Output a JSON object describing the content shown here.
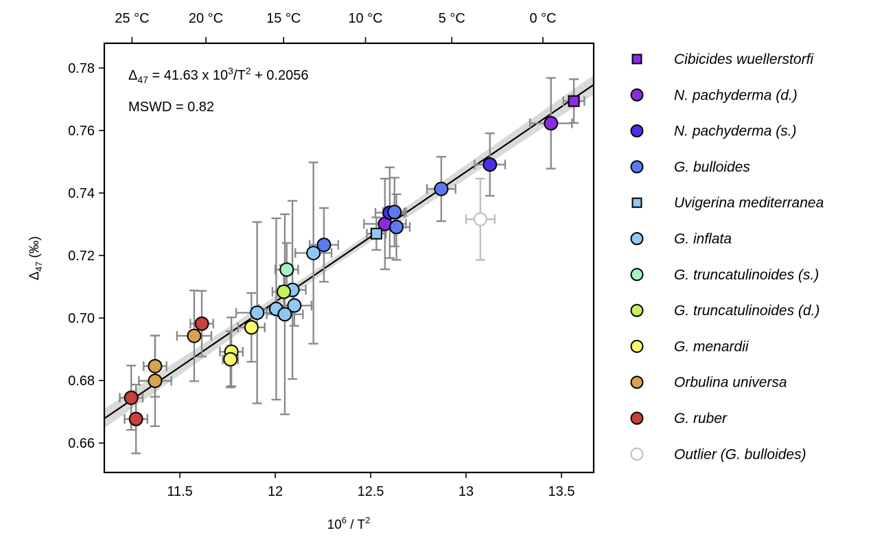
{
  "chart_data": {
    "type": "scatter",
    "title": "",
    "xlabel": "10^6 / T^2",
    "xlabel_base": "10",
    "xlabel_sup": "6",
    "xlabel_rest": " / T",
    "xlabel_sup2": "2",
    "ylabel_main": "Δ",
    "ylabel_sub": "47",
    "ylabel_rest": " (‰)",
    "xlim": [
      11.104,
      13.669
    ],
    "ylim": [
      0.6506,
      0.7879
    ],
    "xticks": [
      11.5,
      12,
      12.5,
      13,
      13.5
    ],
    "xtick_labels": [
      "11.5",
      "12",
      "12.5",
      "13",
      "13.5"
    ],
    "yticks": [
      0.66,
      0.68,
      0.7,
      0.72,
      0.74,
      0.76,
      0.78
    ],
    "ytick_labels": [
      "0.66",
      "0.68",
      "0.70",
      "0.72",
      "0.74",
      "0.76",
      "0.78"
    ],
    "top_axis": {
      "ticks_celsius": [
        25,
        20,
        15,
        10,
        5,
        0
      ],
      "tick_labels": [
        "25 °C",
        "20 °C",
        "15 °C",
        "10 °C",
        "5 °C",
        "0 °C"
      ]
    },
    "grid": false,
    "legend_placement": "outside-right",
    "fit": {
      "slope": 0.04163,
      "intercept": 0.2056,
      "equation_main": "Δ",
      "equation_sub": "47",
      "equation_rest1": " = 41.63 x 10",
      "equation_sup1": "3",
      "equation_rest2": "/T",
      "equation_sup2": "2",
      "equation_rest3": " + 0.2056",
      "mswd_label": "MSWD = 0.82",
      "line_color": "#000000",
      "band_color": "#d9d9d9"
    },
    "errorbar_color": "#8a8a8a",
    "series": [
      {
        "name": "Cibicides wuellerstorfi",
        "marker": "square",
        "color": "#8a2be2",
        "points": [
          {
            "x": 13.565,
            "y": 0.7694,
            "xerr": 0.055,
            "yerr": 0.007
          }
        ]
      },
      {
        "name": "N. pachyderma (d.)",
        "marker": "circle",
        "color": "#8a2be2",
        "points": [
          {
            "x": 13.445,
            "y": 0.7623,
            "xerr": 0.11,
            "yerr": 0.0145
          },
          {
            "x": 12.575,
            "y": 0.7301,
            "xerr": 0.11,
            "yerr": 0.0145
          }
        ]
      },
      {
        "name": "N. pachyderma (s.)",
        "marker": "circle",
        "color": "#4b2ee8",
        "points": [
          {
            "x": 13.125,
            "y": 0.7491,
            "xerr": 0.08,
            "yerr": 0.01
          },
          {
            "x": 12.6,
            "y": 0.7337,
            "xerr": 0.075,
            "yerr": 0.0145
          }
        ]
      },
      {
        "name": "G. bulloides",
        "marker": "circle",
        "color": "#5a7af0",
        "points": [
          {
            "x": 12.87,
            "y": 0.7413,
            "xerr": 0.075,
            "yerr": 0.0103
          },
          {
            "x": 12.625,
            "y": 0.7339,
            "xerr": 0.06,
            "yerr": 0.011
          },
          {
            "x": 12.635,
            "y": 0.7291,
            "xerr": 0.07,
            "yerr": 0.0105
          },
          {
            "x": 12.255,
            "y": 0.7234,
            "xerr": 0.075,
            "yerr": 0.0118
          }
        ]
      },
      {
        "name": "Uvigerina mediterranea",
        "marker": "square",
        "color": "#8ec8f5",
        "points": [
          {
            "x": 12.53,
            "y": 0.727,
            "xerr": 0.05,
            "yerr": 0.0052
          }
        ]
      },
      {
        "name": "G. inflata",
        "marker": "circle",
        "color": "#8ec8f5",
        "points": [
          {
            "x": 12.2,
            "y": 0.7208,
            "xerr": 0.095,
            "yerr": 0.029
          },
          {
            "x": 12.09,
            "y": 0.709,
            "xerr": 0.07,
            "yerr": 0.0285
          },
          {
            "x": 12.1,
            "y": 0.704,
            "xerr": 0.09,
            "yerr": 0.0065
          },
          {
            "x": 12.005,
            "y": 0.7029,
            "xerr": 0.09,
            "yerr": 0.029
          },
          {
            "x": 12.05,
            "y": 0.7012,
            "xerr": 0.095,
            "yerr": 0.032
          },
          {
            "x": 11.905,
            "y": 0.7017,
            "xerr": 0.11,
            "yerr": 0.029
          }
        ]
      },
      {
        "name": "G. truncatulinoides (s.)",
        "marker": "circle",
        "color": "#a8f0c6",
        "points": [
          {
            "x": 12.06,
            "y": 0.7155,
            "xerr": 0.06,
            "yerr": 0.0085
          }
        ]
      },
      {
        "name": "G. truncatulinoides (d.)",
        "marker": "circle",
        "color": "#c6f060",
        "points": [
          {
            "x": 12.045,
            "y": 0.7084,
            "xerr": 0.06,
            "yerr": 0.0085
          }
        ]
      },
      {
        "name": "G. menardii",
        "marker": "circle",
        "color": "#fafa6e",
        "points": [
          {
            "x": 11.875,
            "y": 0.697,
            "xerr": 0.07,
            "yerr": 0.011
          },
          {
            "x": 11.77,
            "y": 0.6892,
            "xerr": 0.06,
            "yerr": 0.011
          },
          {
            "x": 11.765,
            "y": 0.6868,
            "xerr": 0.04,
            "yerr": 0.009
          }
        ]
      },
      {
        "name": "Orbulina universa",
        "marker": "circle",
        "color": "#d9a24c",
        "points": [
          {
            "x": 11.575,
            "y": 0.6943,
            "xerr": 0.09,
            "yerr": 0.0145
          },
          {
            "x": 11.37,
            "y": 0.6846,
            "xerr": 0.06,
            "yerr": 0.0098
          },
          {
            "x": 11.37,
            "y": 0.6799,
            "xerr": 0.085,
            "yerr": 0.0145
          }
        ]
      },
      {
        "name": "G. ruber",
        "marker": "circle",
        "color": "#c9403c",
        "points": [
          {
            "x": 11.615,
            "y": 0.6982,
            "xerr": 0.06,
            "yerr": 0.0105
          },
          {
            "x": 11.245,
            "y": 0.6745,
            "xerr": 0.06,
            "yerr": 0.0103
          },
          {
            "x": 11.27,
            "y": 0.6677,
            "xerr": 0.06,
            "yerr": 0.011
          }
        ]
      },
      {
        "name": "Outlier (G. bulloides)",
        "marker": "open-circle",
        "color": "#bdbdbd",
        "points": [
          {
            "x": 13.075,
            "y": 0.7316,
            "xerr": 0.075,
            "yerr": 0.013
          }
        ]
      }
    ]
  }
}
